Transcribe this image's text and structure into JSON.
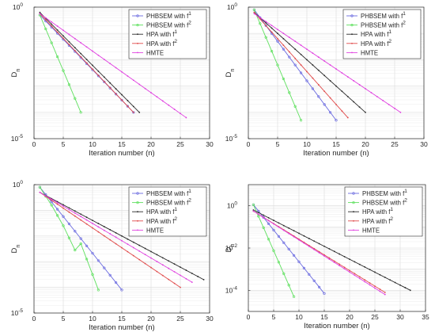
{
  "chart_data": [
    {
      "type": "line",
      "xlabel": "Iteration number (n)",
      "ylabel": "D",
      "ylabel_sub": "n",
      "scale": "log",
      "xlim": [
        0,
        30
      ],
      "ylim_exp": [
        -5,
        0
      ],
      "xticks": [
        "0",
        "5",
        "10",
        "15",
        "20",
        "25",
        "30"
      ],
      "yticks": [
        {
          "base": "10",
          "exp": "0"
        },
        {
          "base": "10",
          "exp": "-5"
        }
      ],
      "grid": true,
      "legend_position": "top-right",
      "series": [
        {
          "name": "PHBSEM with f",
          "name_sup": "1",
          "color": "#6a6ae0",
          "marker": "circle",
          "x": [
            1,
            17
          ],
          "y_exp": [
            -0.3,
            -4.0
          ]
        },
        {
          "name": "PHBSEM with f",
          "name_sup": "2",
          "color": "#5ee05e",
          "marker": "circle",
          "x": [
            1,
            8
          ],
          "y_exp": [
            -0.3,
            -4.0
          ]
        },
        {
          "name": "HPA with f",
          "name_sup": "1",
          "color": "#2b2b2b",
          "marker": "dot",
          "x": [
            1,
            18
          ],
          "y_exp": [
            -0.2,
            -4.0
          ]
        },
        {
          "name": "HPA with f",
          "name_sup": "2",
          "color": "#e04a4a",
          "marker": "dot",
          "x": [
            1,
            17
          ],
          "y_exp": [
            -0.25,
            -4.0
          ]
        },
        {
          "name": "HMTE",
          "name_sup": "",
          "color": "#e040e0",
          "marker": "dot",
          "x": [
            1,
            26
          ],
          "y_exp": [
            -0.25,
            -4.2
          ]
        }
      ]
    },
    {
      "type": "line",
      "xlabel": "Iteration number (n)",
      "ylabel": "D",
      "ylabel_sub": "n",
      "scale": "log",
      "xlim": [
        0,
        30
      ],
      "ylim_exp": [
        -5,
        0
      ],
      "xticks": [
        "0",
        "5",
        "10",
        "15",
        "20",
        "25",
        "30"
      ],
      "yticks": [
        {
          "base": "10",
          "exp": "0"
        },
        {
          "base": "10",
          "exp": "-5"
        }
      ],
      "grid": true,
      "legend_position": "top-right",
      "series": [
        {
          "name": "PHBSEM with f",
          "name_sup": "1",
          "color": "#6a6ae0",
          "marker": "circle",
          "x": [
            1,
            15
          ],
          "y_exp": [
            -0.1,
            -4.3
          ]
        },
        {
          "name": "PHBSEM with f",
          "name_sup": "2",
          "color": "#5ee05e",
          "marker": "circle",
          "x": [
            1,
            9
          ],
          "y_exp": [
            -0.1,
            -4.3
          ]
        },
        {
          "name": "HPA with f",
          "name_sup": "1",
          "color": "#2b2b2b",
          "marker": "dot",
          "x": [
            1,
            20
          ],
          "y_exp": [
            -0.2,
            -4.0
          ]
        },
        {
          "name": "HPA with f",
          "name_sup": "2",
          "color": "#e04a4a",
          "marker": "dot",
          "x": [
            1,
            17
          ],
          "y_exp": [
            -0.2,
            -4.2
          ]
        },
        {
          "name": "HMTE",
          "name_sup": "",
          "color": "#e040e0",
          "marker": "dot",
          "x": [
            1,
            26
          ],
          "y_exp": [
            -0.25,
            -4.0
          ]
        }
      ]
    },
    {
      "type": "line",
      "xlabel": "Iteration number (n)",
      "ylabel": "D",
      "ylabel_sub": "n",
      "scale": "log",
      "xlim": [
        0,
        30
      ],
      "ylim_exp": [
        -5,
        0
      ],
      "xticks": [
        "0",
        "5",
        "10",
        "15",
        "20",
        "25",
        "30"
      ],
      "yticks": [
        {
          "base": "10",
          "exp": "0"
        },
        {
          "base": "10",
          "exp": "-5"
        }
      ],
      "grid": true,
      "legend_position": "top-right",
      "series": [
        {
          "name": "PHBSEM with f",
          "name_sup": "1",
          "color": "#6a6ae0",
          "marker": "circle",
          "x": [
            1,
            15
          ],
          "y_exp": [
            -0.1,
            -4.1
          ]
        },
        {
          "name": "PHBSEM with f",
          "name_sup": "2",
          "color": "#5ee05e",
          "marker": "circle",
          "x": [
            1,
            3,
            5,
            7,
            8,
            9,
            11
          ],
          "y_exp": [
            -0.1,
            -0.8,
            -1.6,
            -2.55,
            -2.3,
            -2.9,
            -4.1
          ]
        },
        {
          "name": "HPA with f",
          "name_sup": "1",
          "color": "#2b2b2b",
          "marker": "dot",
          "x": [
            1,
            29
          ],
          "y_exp": [
            -0.3,
            -3.7
          ]
        },
        {
          "name": "HPA with f",
          "name_sup": "2",
          "color": "#e04a4a",
          "marker": "dot",
          "x": [
            1,
            25
          ],
          "y_exp": [
            -0.3,
            -4.0
          ]
        },
        {
          "name": "HMTE",
          "name_sup": "",
          "color": "#e040e0",
          "marker": "dot",
          "x": [
            1,
            27
          ],
          "y_exp": [
            -0.3,
            -3.8
          ]
        }
      ]
    },
    {
      "type": "line",
      "xlabel": "Iteration number (n)",
      "ylabel": "D",
      "ylabel_sub": "n",
      "scale": "log",
      "xlim": [
        0,
        35
      ],
      "ylim_exp": [
        -5,
        1
      ],
      "xticks": [
        "0",
        "5",
        "10",
        "15",
        "20",
        "25",
        "30",
        "35"
      ],
      "yticks": [
        {
          "base": "10",
          "exp": "0"
        },
        {
          "base": "10",
          "exp": "-2"
        },
        {
          "base": "10",
          "exp": "-4"
        }
      ],
      "ytick_values_exp": [
        0,
        -2,
        -4
      ],
      "grid": true,
      "legend_position": "top-right",
      "series": [
        {
          "name": "PHBSEM with f",
          "name_sup": "1",
          "color": "#6a6ae0",
          "marker": "circle",
          "x": [
            1,
            15
          ],
          "y_exp": [
            0.05,
            -4.15
          ]
        },
        {
          "name": "PHBSEM with f",
          "name_sup": "2",
          "color": "#5ee05e",
          "marker": "circle",
          "x": [
            1,
            9
          ],
          "y_exp": [
            0.05,
            -4.3
          ]
        },
        {
          "name": "HPA with f",
          "name_sup": "1",
          "color": "#2b2b2b",
          "marker": "dot",
          "x": [
            1,
            32
          ],
          "y_exp": [
            -0.2,
            -4.0
          ]
        },
        {
          "name": "HPA with f",
          "name_sup": "2",
          "color": "#e04a4a",
          "marker": "dot",
          "x": [
            1,
            27
          ],
          "y_exp": [
            -0.25,
            -4.1
          ]
        },
        {
          "name": "HMTE",
          "name_sup": "",
          "color": "#e040e0",
          "marker": "dot",
          "x": [
            1,
            27
          ],
          "y_exp": [
            -0.25,
            -4.2
          ]
        }
      ]
    }
  ]
}
